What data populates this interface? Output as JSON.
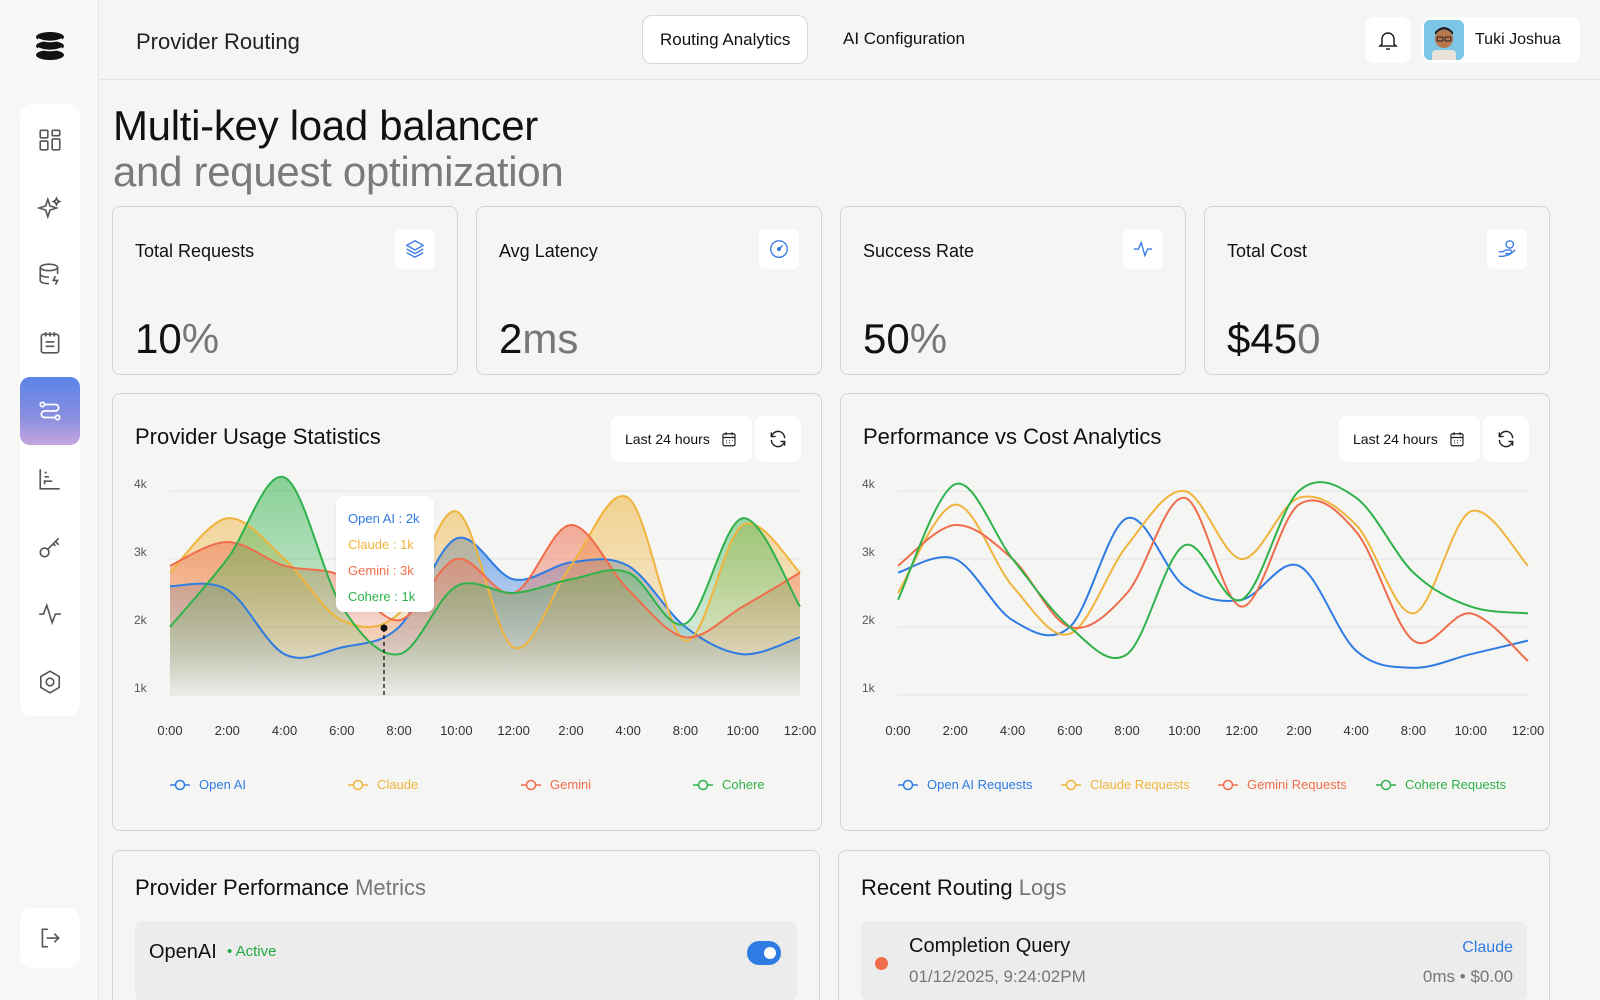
{
  "header": {
    "title": "Provider Routing",
    "tabs": [
      {
        "label": "Routing Analytics",
        "active": true
      },
      {
        "label": "AI Configuration",
        "active": false
      }
    ],
    "user_name": "Tuki Joshua"
  },
  "sidebar": {
    "items": [
      {
        "icon": "dashboard-icon"
      },
      {
        "icon": "sparkles-icon"
      },
      {
        "icon": "database-icon"
      },
      {
        "icon": "notes-icon"
      },
      {
        "icon": "routing-icon",
        "active": true
      },
      {
        "icon": "bar-chart-icon"
      },
      {
        "icon": "key-icon"
      },
      {
        "icon": "activity-icon"
      },
      {
        "icon": "settings-icon"
      }
    ],
    "logout_icon": "logout-icon"
  },
  "hero": {
    "line1": "Multi-key load balancer",
    "line2": "and request optimization"
  },
  "stats": [
    {
      "label": "Total Requests",
      "value": "10",
      "unit": "%",
      "icon": "layers-icon"
    },
    {
      "label": "Avg Latency",
      "value": "2",
      "unit": "ms",
      "icon": "gauge-icon"
    },
    {
      "label": "Success Rate",
      "value": "50",
      "unit": "%",
      "icon": "pulse-icon"
    },
    {
      "label": "Total Cost",
      "value": "$45",
      "unit": "0",
      "icon": "money-icon"
    }
  ],
  "colors": {
    "openai": "#2e7be3",
    "claude": "#f0b43c",
    "gemini": "#f06d4c",
    "cohere": "#2fb24a"
  },
  "usage_chart": {
    "title": "Provider Usage Statistics",
    "range_label": "Last 24 hours",
    "tooltip": [
      "Open AI : 2k",
      "Claude : 1k",
      "Gemini : 3k",
      "Cohere : 1k"
    ]
  },
  "perf_chart": {
    "title": "Performance vs Cost Analytics",
    "range_label": "Last 24 hours"
  },
  "chart_data": [
    {
      "type": "area",
      "title": "Provider Usage Statistics",
      "x": [
        "0:00",
        "2:00",
        "4:00",
        "6:00",
        "8:00",
        "10:00",
        "12:00",
        "2:00",
        "4:00",
        "8:00",
        "10:00",
        "12:00"
      ],
      "y_ticks": [
        "4k",
        "3k",
        "2k",
        "1k"
      ],
      "ylim": [
        1,
        4
      ],
      "series": [
        {
          "name": "Open AI",
          "color": "#2e7be3",
          "values": [
            2.6,
            2.55,
            1.6,
            1.7,
            2.0,
            3.3,
            2.7,
            2.95,
            2.9,
            2.0,
            1.6,
            1.85
          ]
        },
        {
          "name": "Claude",
          "color": "#f0b43c",
          "values": [
            2.8,
            3.6,
            3.0,
            2.1,
            2.2,
            3.7,
            1.7,
            2.9,
            3.9,
            1.8,
            3.5,
            2.8
          ]
        },
        {
          "name": "Gemini",
          "color": "#f06d4c",
          "values": [
            2.9,
            3.25,
            2.9,
            2.75,
            2.1,
            3.0,
            2.5,
            3.5,
            2.55,
            1.85,
            2.3,
            2.8
          ]
        },
        {
          "name": "Cohere",
          "color": "#2fb24a",
          "values": [
            2.0,
            3.0,
            4.2,
            2.3,
            1.6,
            2.6,
            2.5,
            2.7,
            2.8,
            2.05,
            3.6,
            2.3
          ]
        }
      ],
      "legend": [
        "Open AI",
        "Claude",
        "Gemini",
        "Cohere"
      ],
      "legend_position": "bottom"
    },
    {
      "type": "line",
      "title": "Performance vs Cost Analytics",
      "x": [
        "0:00",
        "2:00",
        "4:00",
        "6:00",
        "8:00",
        "10:00",
        "12:00",
        "2:00",
        "4:00",
        "8:00",
        "10:00",
        "12:00"
      ],
      "y_ticks": [
        "4k",
        "3k",
        "2k",
        "1k"
      ],
      "ylim": [
        1,
        4
      ],
      "series": [
        {
          "name": "Open AI Requests",
          "color": "#2e7be3",
          "values": [
            2.8,
            3.0,
            2.1,
            2.0,
            3.6,
            2.6,
            2.4,
            2.9,
            1.65,
            1.4,
            1.6,
            1.8
          ]
        },
        {
          "name": "Claude Requests",
          "color": "#f0b43c",
          "values": [
            2.5,
            3.8,
            2.6,
            1.9,
            3.2,
            4.0,
            3.0,
            3.9,
            3.5,
            2.2,
            3.7,
            2.9
          ]
        },
        {
          "name": "Gemini Requests",
          "color": "#f06d4c",
          "values": [
            2.9,
            3.5,
            3.0,
            2.0,
            2.5,
            3.9,
            2.3,
            3.8,
            3.4,
            1.8,
            2.2,
            1.5
          ]
        },
        {
          "name": "Cohere Requests",
          "color": "#2fb24a",
          "values": [
            2.4,
            4.1,
            3.0,
            2.0,
            1.6,
            3.2,
            2.4,
            4.0,
            3.9,
            2.8,
            2.3,
            2.2
          ]
        }
      ],
      "legend": [
        "Open AI Requests",
        "Claude Requests",
        "Gemini Requests",
        "Cohere Requests"
      ],
      "legend_position": "bottom"
    }
  ],
  "provider_panel": {
    "title": "Provider Performance",
    "title_muted": "Metrics",
    "rows": [
      {
        "name": "OpenAI",
        "status": "Active",
        "enabled": true
      }
    ]
  },
  "logs_panel": {
    "title": "Recent Routing",
    "title_muted": "Logs",
    "rows": [
      {
        "title": "Completion Query",
        "time": "01/12/2025, 9:24:02PM",
        "provider": "Claude",
        "latency": "0ms",
        "cost": "$0.00"
      }
    ]
  }
}
